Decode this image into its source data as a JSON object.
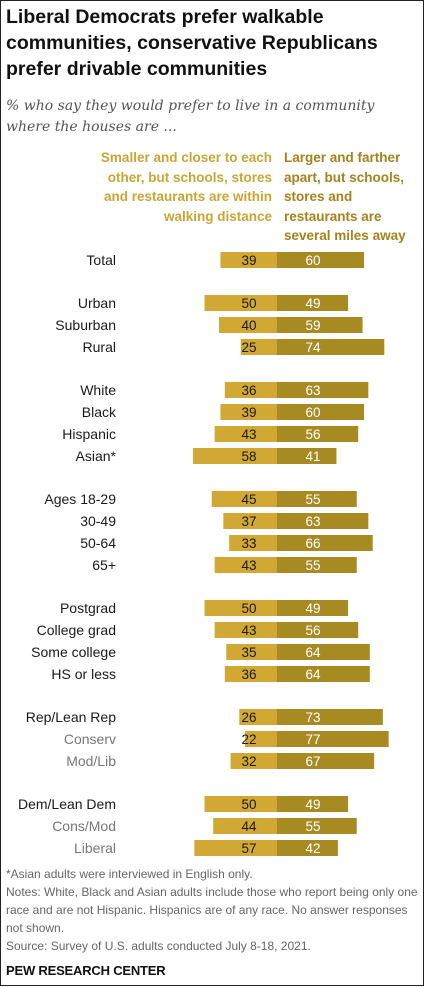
{
  "title": "Liberal Democrats prefer walkable communities, conservative Republicans prefer drivable communities",
  "subtitle": "% who say they would prefer to live in a community where the houses are ...",
  "legend": {
    "left": "Smaller and closer to each other, but schools, stores and restaurants are within walking distance",
    "right": "Larger and farther apart, but schools, stores and restaurants are several miles away"
  },
  "notes": {
    "footnote": "*Asian adults were interviewed in English only.",
    "notes": "Notes: White, Black and Asian adults include those who report being only one race and are not Hispanic. Hispanics are of any race. No answer responses not shown.",
    "source": "Source: Survey of U.S. adults conducted July 8-18, 2021.",
    "org": "PEW RESEARCH CENTER"
  },
  "colors": {
    "walkable": "#d1a833",
    "drivable": "#a88a22",
    "label": "#1a1a1a",
    "sublabel": "#777777"
  },
  "chart_data": {
    "type": "bar",
    "orientation": "horizontal-diverging",
    "series": [
      {
        "name": "Smaller and closer to each other, but schools, stores and restaurants are within walking distance",
        "values": [
          39,
          50,
          40,
          25,
          36,
          39,
          43,
          58,
          45,
          37,
          33,
          43,
          50,
          43,
          35,
          36,
          26,
          22,
          32,
          50,
          44,
          57
        ]
      },
      {
        "name": "Larger and farther apart, but schools, stores and restaurants are several miles away",
        "values": [
          60,
          49,
          59,
          74,
          63,
          60,
          56,
          41,
          55,
          63,
          66,
          55,
          49,
          56,
          64,
          64,
          73,
          77,
          67,
          49,
          55,
          42
        ]
      }
    ],
    "categories": [
      "Total",
      "Urban",
      "Suburban",
      "Rural",
      "White",
      "Black",
      "Hispanic",
      "Asian*",
      "Ages 18-29",
      "30-49",
      "50-64",
      "65+",
      "Postgrad",
      "College grad",
      "Some college",
      "HS or less",
      "Rep/Lean Rep",
      "Conserv",
      "Mod/Lib",
      "Dem/Lean Dem",
      "Cons/Mod",
      "Liberal"
    ],
    "groups": [
      0,
      1,
      1,
      1,
      2,
      2,
      2,
      2,
      3,
      3,
      3,
      3,
      4,
      4,
      4,
      4,
      5,
      5,
      5,
      6,
      6,
      6
    ],
    "subcategory": [
      false,
      false,
      false,
      false,
      false,
      false,
      false,
      false,
      false,
      false,
      false,
      false,
      false,
      false,
      false,
      false,
      false,
      true,
      true,
      false,
      true,
      true
    ]
  }
}
